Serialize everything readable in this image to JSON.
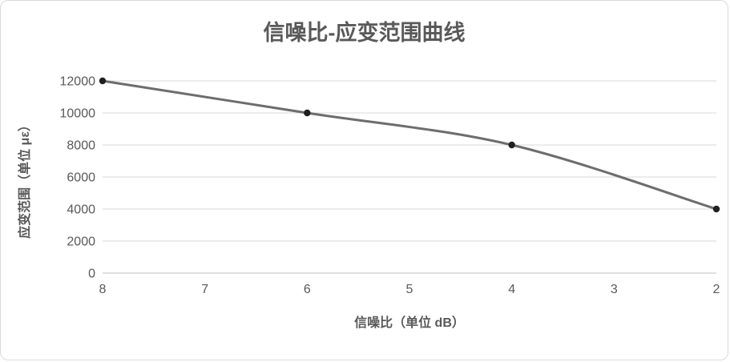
{
  "chart_data": {
    "type": "line",
    "title": "信噪比-应变范围曲线",
    "xlabel": "信噪比（单位 dB）",
    "ylabel": "应变范围（单位 με）",
    "x": [
      8,
      6,
      4,
      2
    ],
    "values": [
      12000,
      10000,
      8000,
      4000
    ],
    "series_name": "信噪比-应变范围曲线",
    "x_ticks": [
      8,
      7,
      6,
      5,
      4,
      3,
      2
    ],
    "y_ticks": [
      0,
      2000,
      4000,
      6000,
      8000,
      10000,
      12000
    ],
    "xlim": [
      8,
      2
    ],
    "ylim": [
      0,
      12000
    ],
    "x_axis_reversed": true,
    "grid": "horizontal",
    "legend": "none",
    "colors": {
      "line": "#6d6d6d",
      "marker": "#1f1f1f",
      "grid": "#d9d9d9",
      "axis": "#bfbfbf",
      "text": "#595959"
    }
  }
}
